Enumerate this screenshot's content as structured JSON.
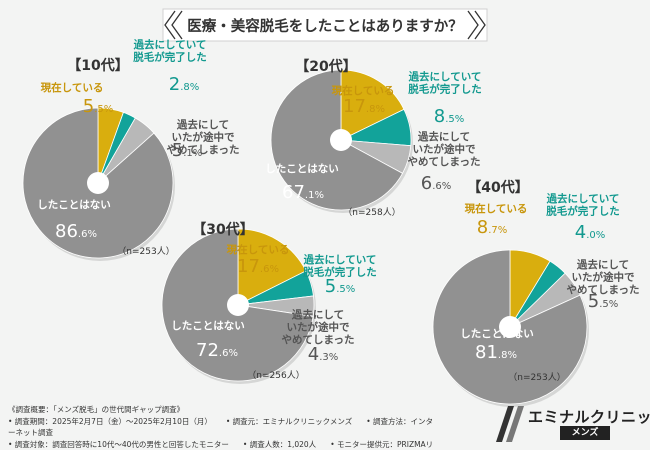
{
  "title": "医療・美容脱毛をしたことはありますか？",
  "colors": {
    "current": "#d9ae0e",
    "done": "#12a39a",
    "quit": "#b8b8b8",
    "never": "#919191",
    "label_current": "#c8960c",
    "label_done": "#12998f",
    "label_quit": "#555555",
    "label_never": "#ffffff"
  },
  "chart_data": [
    {
      "type": "pie",
      "title": "【10代】",
      "n": "（n=253人）",
      "slices": [
        {
          "key": "current",
          "label": "現在している",
          "value": 5.5,
          "int": "5",
          "dec": ".5",
          "unit": "%"
        },
        {
          "key": "done",
          "label": "過去にしていて\n脱毛が完了した",
          "value": 2.8,
          "int": "2",
          "dec": ".8",
          "unit": "%"
        },
        {
          "key": "quit",
          "label": "過去にして\nいたが途中で\nやめてしまった",
          "value": 5.1,
          "int": "5",
          "dec": ".1",
          "unit": "%"
        },
        {
          "key": "never",
          "label": "したことはない",
          "value": 86.6,
          "int": "86",
          "dec": ".6",
          "unit": "%"
        }
      ]
    },
    {
      "type": "pie",
      "title": "【20代】",
      "n": "（n=258人）",
      "slices": [
        {
          "key": "current",
          "label": "現在している",
          "value": 17.8,
          "int": "17",
          "dec": ".8",
          "unit": "%"
        },
        {
          "key": "done",
          "label": "過去にしていて\n脱毛が完了した",
          "value": 8.5,
          "int": "8",
          "dec": ".5",
          "unit": "%"
        },
        {
          "key": "quit",
          "label": "過去にして\nいたが途中で\nやめてしまった",
          "value": 6.6,
          "int": "6",
          "dec": ".6",
          "unit": "%"
        },
        {
          "key": "never",
          "label": "したことはない",
          "value": 67.1,
          "int": "67",
          "dec": ".1",
          "unit": "%"
        }
      ]
    },
    {
      "type": "pie",
      "title": "【30代】",
      "n": "（n=256人）",
      "slices": [
        {
          "key": "current",
          "label": "現在している",
          "value": 17.6,
          "int": "17",
          "dec": ".6",
          "unit": "%"
        },
        {
          "key": "done",
          "label": "過去にしていて\n脱毛が完了した",
          "value": 5.5,
          "int": "5",
          "dec": ".5",
          "unit": "%"
        },
        {
          "key": "quit",
          "label": "過去にして\nいたが途中で\nやめてしまった",
          "value": 4.3,
          "int": "4",
          "dec": ".3",
          "unit": "%"
        },
        {
          "key": "never",
          "label": "したことはない",
          "value": 72.6,
          "int": "72",
          "dec": ".6",
          "unit": "%"
        }
      ]
    },
    {
      "type": "pie",
      "title": "【40代】",
      "n": "（n=253人）",
      "slices": [
        {
          "key": "current",
          "label": "現在している",
          "value": 8.7,
          "int": "8",
          "dec": ".7",
          "unit": "%"
        },
        {
          "key": "done",
          "label": "過去にしていて\n脱毛が完了した",
          "value": 4.0,
          "int": "4",
          "dec": ".0",
          "unit": "%"
        },
        {
          "key": "quit",
          "label": "過去にして\nいたが途中で\nやめてしまった",
          "value": 5.5,
          "int": "5",
          "dec": ".5",
          "unit": "%"
        },
        {
          "key": "never",
          "label": "したことはない",
          "value": 81.8,
          "int": "81",
          "dec": ".8",
          "unit": "%"
        }
      ]
    }
  ],
  "footer": {
    "line1": "《調査概要：「メンズ脱毛」の世代間ギャップ調査》",
    "period": "• 調査期間：2025年2月7日（金）〜2025年2月10日（月）",
    "source": "• 調査元：エミナルクリニックメンズ",
    "method": "• 調査方法：インターネット調査",
    "target": "• 調査対象：調査回答時に10代〜40代の男性と回答したモニター",
    "count": "• 調査人数：1,020人",
    "provider": "• モニター提供元：PRIZMAリサーチ"
  },
  "logo": {
    "name": "エミナルクリニック",
    "sub": "メンズ"
  }
}
